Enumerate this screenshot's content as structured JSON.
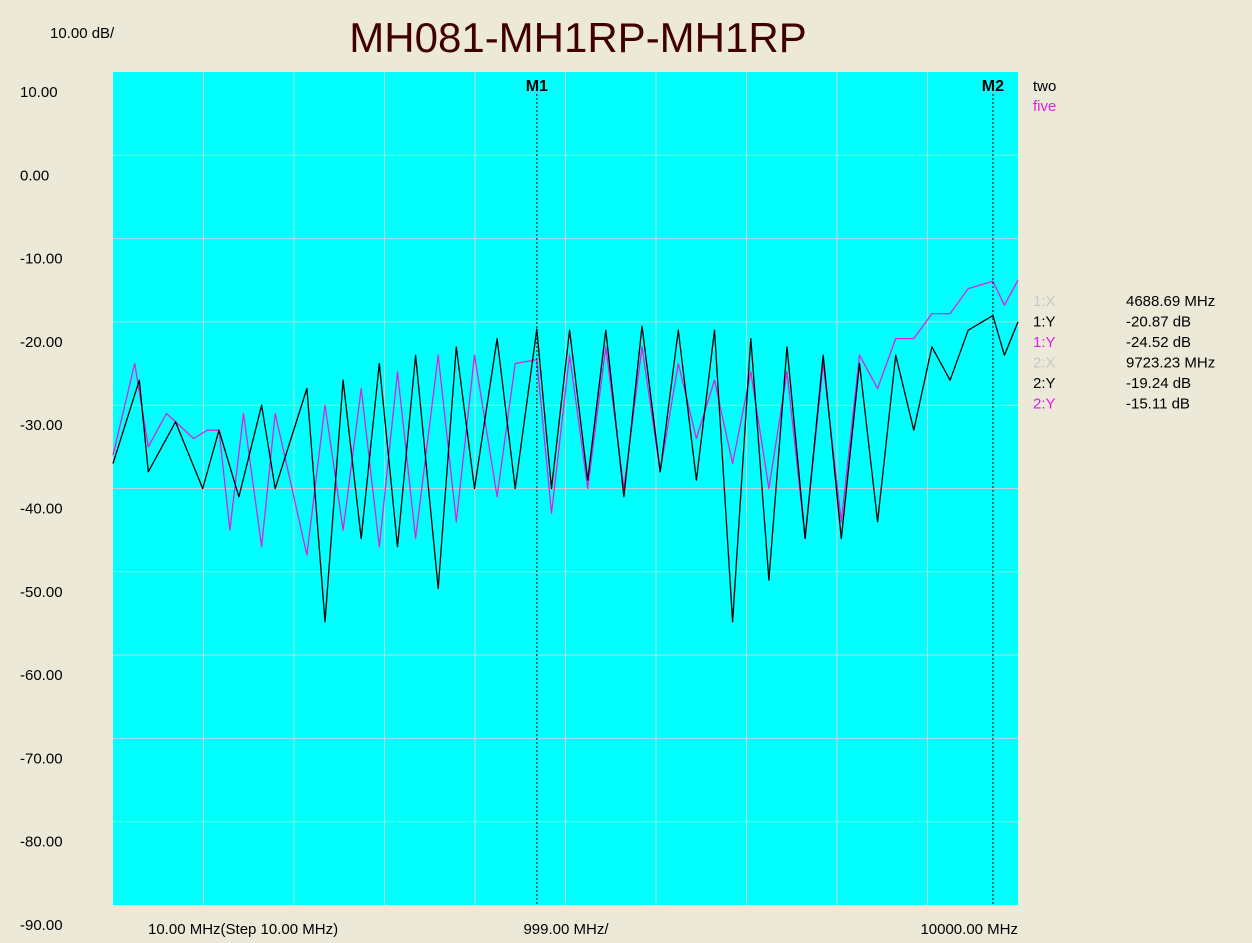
{
  "title": "MH081-MH1RP-MH1RP",
  "scale_label": "10.00 dB/",
  "x_labels": {
    "start": "10.00 MHz(Step 10.00 MHz)",
    "center": "999.00 MHz/",
    "end": "10000.00 MHz"
  },
  "y_ticks": [
    "10.00",
    "0.00",
    "-10.00",
    "-20.00",
    "-30.00",
    "-40.00",
    "-50.00",
    "-60.00",
    "-70.00",
    "-80.00",
    "-90.00"
  ],
  "legend": [
    {
      "name": "two",
      "color": "#000000"
    },
    {
      "name": "five",
      "color": "#E020E0"
    }
  ],
  "markers": [
    {
      "label": "M1",
      "freq_mhz": 4688.69
    },
    {
      "label": "M2",
      "freq_mhz": 9723.23
    }
  ],
  "readouts": [
    {
      "label": "1:X",
      "value": "4688.69 MHz",
      "color": "#C8C8C8"
    },
    {
      "label": "1:Y",
      "value": "-20.87 dB",
      "color": "#000000"
    },
    {
      "label": "1:Y",
      "value": "-24.52 dB",
      "color": "#E020E0"
    },
    {
      "label": "2:X",
      "value": "9723.23 MHz",
      "color": "#C8C8C8"
    },
    {
      "label": "2:Y",
      "value": "-19.24 dB",
      "color": "#000000"
    },
    {
      "label": "2:Y",
      "value": "-15.11 dB",
      "color": "#E020E0"
    }
  ],
  "colors": {
    "plot_bg": "#00FFFF",
    "grid": "#B8D8D8",
    "title": "#400000",
    "series_two": "#000000",
    "series_five": "#E020E0"
  },
  "chart_data": {
    "type": "line",
    "xlim": [
      10,
      10000
    ],
    "ylim": [
      -90,
      10
    ],
    "x_unit": "MHz",
    "y_unit": "dB",
    "grid": true,
    "legend_position": "top-right",
    "series": [
      {
        "name": "two",
        "x": [
          10,
          300,
          400,
          700,
          1000,
          1180,
          1400,
          1650,
          1800,
          2150,
          2350,
          2550,
          2750,
          2950,
          3150,
          3350,
          3600,
          3800,
          4000,
          4250,
          4450,
          4688.69,
          4850,
          5050,
          5250,
          5450,
          5650,
          5850,
          6050,
          6250,
          6450,
          6650,
          6850,
          7050,
          7250,
          7450,
          7650,
          7850,
          8050,
          8250,
          8450,
          8650,
          8850,
          9050,
          9250,
          9450,
          9723.23,
          9850,
          10000
        ],
        "y": [
          -37,
          -27,
          -38,
          -32,
          -40,
          -33,
          -41,
          -30,
          -40,
          -28,
          -56,
          -27,
          -46,
          -25,
          -47,
          -24,
          -52,
          -23,
          -40,
          -22,
          -40,
          -20.87,
          -40,
          -21,
          -39,
          -21,
          -41,
          -20.5,
          -38,
          -21,
          -39,
          -21,
          -56,
          -22,
          -51,
          -23,
          -46,
          -24,
          -46,
          -25,
          -44,
          -24,
          -33,
          -23,
          -27,
          -21,
          -19.24,
          -24,
          -20
        ]
      },
      {
        "name": "five",
        "x": [
          10,
          250,
          400,
          600,
          900,
          1050,
          1180,
          1300,
          1450,
          1650,
          1800,
          2150,
          2350,
          2550,
          2750,
          2950,
          3150,
          3350,
          3600,
          3800,
          4000,
          4250,
          4450,
          4688.69,
          4850,
          5050,
          5250,
          5450,
          5650,
          5850,
          6050,
          6250,
          6450,
          6650,
          6850,
          7050,
          7250,
          7450,
          7650,
          7850,
          8050,
          8250,
          8450,
          8650,
          8850,
          9050,
          9250,
          9450,
          9723.23,
          9850,
          10000
        ],
        "y": [
          -36,
          -25,
          -35,
          -31,
          -34,
          -33,
          -33,
          -45,
          -31,
          -47,
          -31,
          -48,
          -30,
          -45,
          -28,
          -47,
          -26,
          -46,
          -24,
          -44,
          -24,
          -41,
          -25,
          -24.52,
          -43,
          -24,
          -40,
          -23,
          -40,
          -23,
          -38,
          -25,
          -34,
          -27,
          -37,
          -26,
          -40,
          -26,
          -46,
          -25,
          -44,
          -24,
          -28,
          -22,
          -22,
          -19,
          -19,
          -16,
          -15.11,
          -18,
          -15
        ]
      }
    ]
  }
}
